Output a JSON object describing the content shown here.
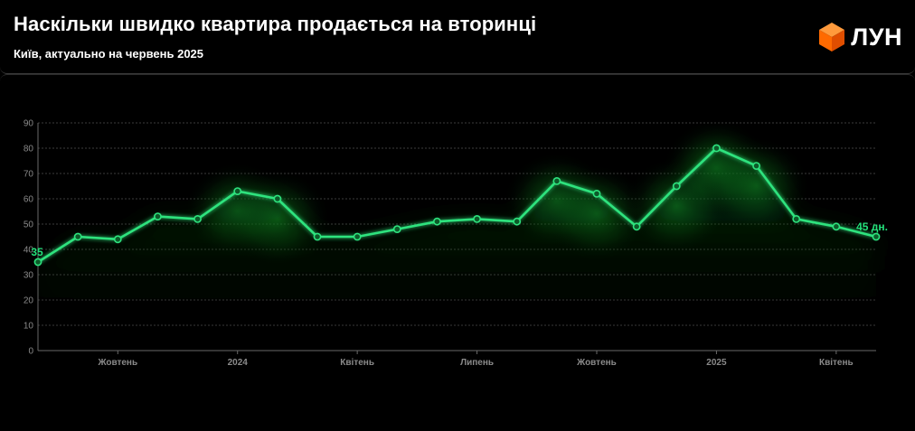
{
  "header": {
    "title": "Наскільки швидко квартира продається на вторинці",
    "subtitle": "Київ, актуально на червень 2025",
    "logo_text": "ЛУН"
  },
  "colors": {
    "line": "#2ee37e",
    "point_fill": "#0d5a2a",
    "glow": "#0f6b1e",
    "grid": "#3c3c3c",
    "logo_orange": "#ff6a00"
  },
  "chart_data": {
    "type": "line",
    "ylim": [
      0,
      90
    ],
    "yticks": [
      0,
      10,
      20,
      30,
      40,
      50,
      60,
      70,
      80,
      90
    ],
    "x_tick_labels": [
      {
        "index": 2,
        "label": "Жовтень"
      },
      {
        "index": 5,
        "label": "2024"
      },
      {
        "index": 8,
        "label": "Квітень"
      },
      {
        "index": 11,
        "label": "Липень"
      },
      {
        "index": 14,
        "label": "Жовтень"
      },
      {
        "index": 17,
        "label": "2025"
      },
      {
        "index": 20,
        "label": "Квітень"
      }
    ],
    "series": [
      {
        "values": [
          35,
          45,
          44,
          53,
          52,
          63,
          60,
          45,
          45,
          48,
          51,
          52,
          51,
          67,
          62,
          49,
          65,
          80,
          73,
          52,
          49,
          45
        ]
      }
    ],
    "annotations": {
      "first": "35",
      "last": "45 дн."
    },
    "grid": true
  }
}
